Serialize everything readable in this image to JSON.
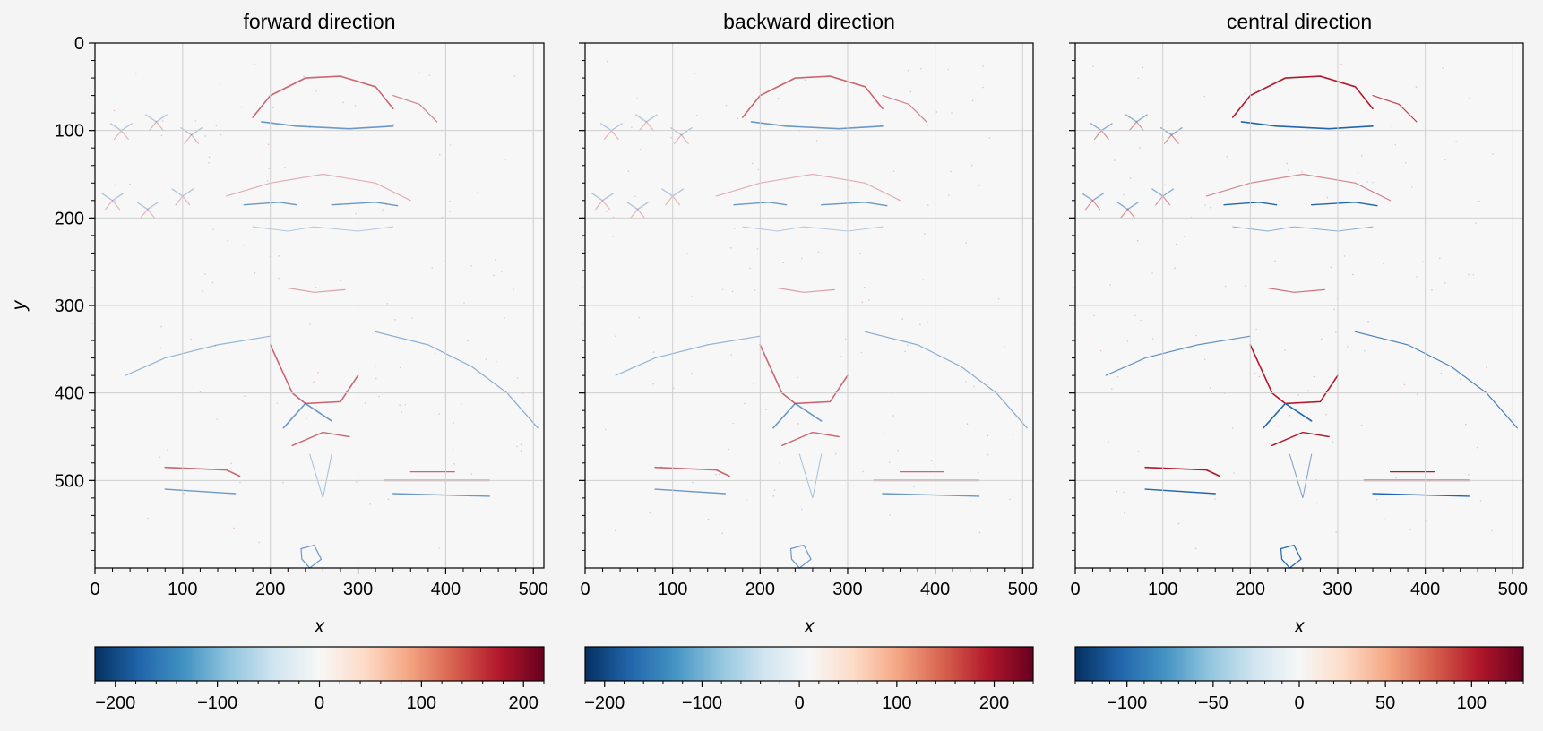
{
  "colors": {
    "background": "#f4f4f4",
    "plot_background": "#f7f7f7",
    "grid": "#cfcfcf",
    "frame": "#000000",
    "negative": "#2166ac",
    "positive": "#b2182b"
  },
  "chart_data": [
    {
      "type": "heatmap",
      "title": "forward direction",
      "xlabel": "x",
      "ylabel": "y",
      "xlim": [
        0,
        512
      ],
      "ylim": [
        600,
        0
      ],
      "xticks": [
        0,
        100,
        200,
        300,
        400,
        500
      ],
      "yticks": [
        0,
        100,
        200,
        300,
        400,
        500
      ],
      "colormap": "RdBu_r",
      "colorbar": {
        "range": [
          -220,
          220
        ],
        "ticks": [
          -200,
          -100,
          0,
          100,
          200
        ],
        "tick_labels": [
          "−200",
          "−100",
          "0",
          "100",
          "200"
        ]
      },
      "grid": true
    },
    {
      "type": "heatmap",
      "title": "backward direction",
      "xlabel": "x",
      "ylabel": "",
      "xlim": [
        0,
        512
      ],
      "ylim": [
        600,
        0
      ],
      "xticks": [
        0,
        100,
        200,
        300,
        400,
        500
      ],
      "yticks": [
        0,
        100,
        200,
        300,
        400,
        500
      ],
      "colormap": "RdBu_r",
      "colorbar": {
        "range": [
          -220,
          240
        ],
        "ticks": [
          -200,
          -100,
          0,
          100,
          200
        ],
        "tick_labels": [
          "−200",
          "−100",
          "0",
          "100",
          "200"
        ]
      },
      "grid": true
    },
    {
      "type": "heatmap",
      "title": "central direction",
      "xlabel": "x",
      "ylabel": "",
      "xlim": [
        0,
        512
      ],
      "ylim": [
        600,
        0
      ],
      "xticks": [
        0,
        100,
        200,
        300,
        400,
        500
      ],
      "yticks": [
        0,
        100,
        200,
        300,
        400,
        500
      ],
      "colormap": "RdBu_r",
      "colorbar": {
        "range": [
          -130,
          130
        ],
        "ticks": [
          -100,
          -50,
          0,
          50,
          100
        ],
        "tick_labels": [
          "−100",
          "−50",
          "0",
          "50",
          "100"
        ]
      },
      "grid": true
    }
  ]
}
